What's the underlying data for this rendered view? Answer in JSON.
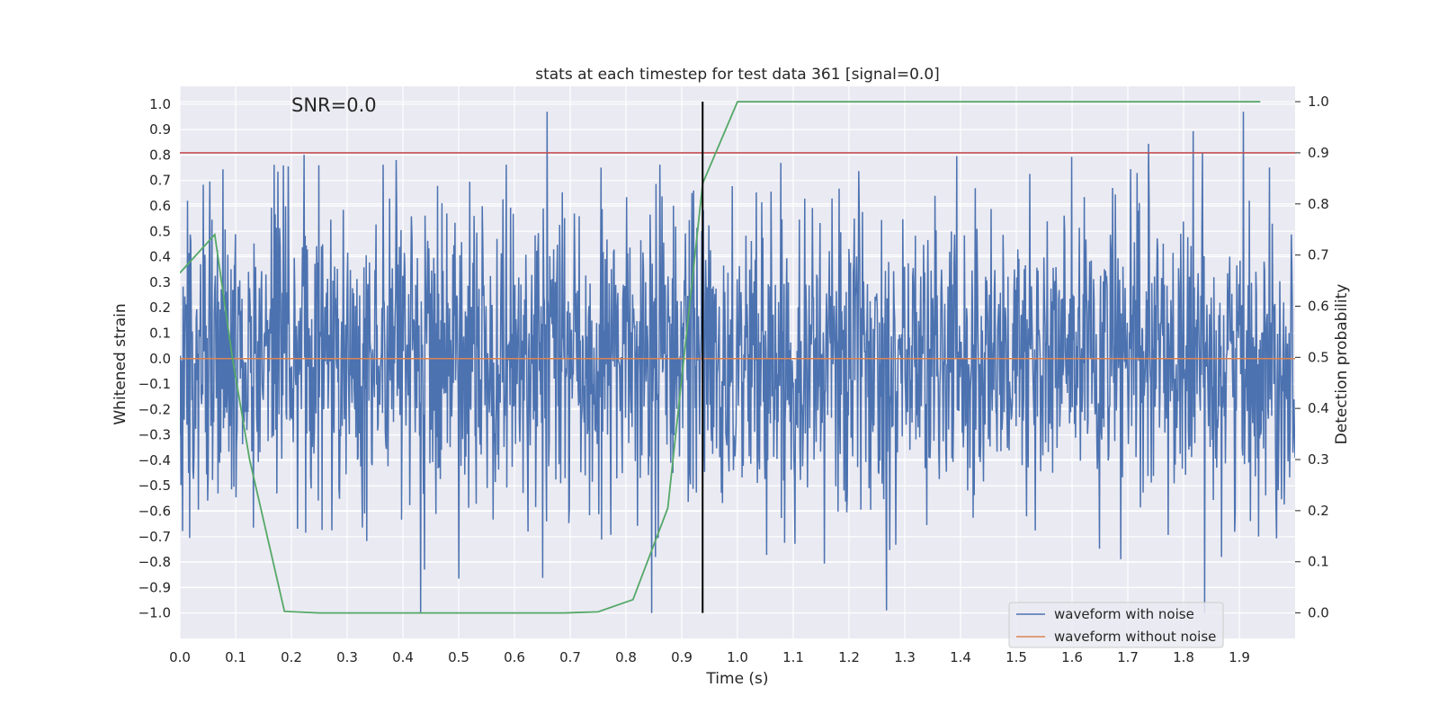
{
  "chart_data": {
    "type": "line",
    "title": "stats at each timestep for test data 361 [signal=0.0]",
    "xlabel": "Time (s)",
    "ylabel": "Whitened strain",
    "y2label": "Detection probability",
    "xlim": [
      0.0,
      2.0
    ],
    "ylim": [
      -1.1,
      1.07
    ],
    "y2lim": [
      -0.05,
      1.03
    ],
    "x_ticks": [
      0.0,
      0.1,
      0.2,
      0.3,
      0.4,
      0.5,
      0.6,
      0.7,
      0.8,
      0.9,
      1.0,
      1.1,
      1.2,
      1.3,
      1.4,
      1.5,
      1.6,
      1.7,
      1.8,
      1.9
    ],
    "x_tick_labels": [
      "0.0",
      "0.1",
      "0.2",
      "0.3",
      "0.4",
      "0.5",
      "0.6",
      "0.7",
      "0.8",
      "0.9",
      "1.0",
      "1.1",
      "1.2",
      "1.3",
      "1.4",
      "1.5",
      "1.6",
      "1.7",
      "1.8",
      "1.9"
    ],
    "y_ticks": [
      -1.0,
      -0.9,
      -0.8,
      -0.7,
      -0.6,
      -0.5,
      -0.4,
      -0.3,
      -0.2,
      -0.1,
      0.0,
      0.1,
      0.2,
      0.3,
      0.4,
      0.5,
      0.6,
      0.7,
      0.8,
      0.9,
      1.0
    ],
    "y_tick_labels": [
      "−1.0",
      "−0.9",
      "−0.8",
      "−0.7",
      "−0.6",
      "−0.5",
      "−0.4",
      "−0.3",
      "−0.2",
      "−0.1",
      "0.0",
      "0.1",
      "0.2",
      "0.3",
      "0.4",
      "0.5",
      "0.6",
      "0.7",
      "0.8",
      "0.9",
      "1.0"
    ],
    "y2_ticks": [
      0.0,
      0.1,
      0.2,
      0.3,
      0.4,
      0.5,
      0.6,
      0.7,
      0.8,
      0.9,
      1.0
    ],
    "y2_tick_labels": [
      "0.0",
      "0.1",
      "0.2",
      "0.3",
      "0.4",
      "0.5",
      "0.6",
      "0.7",
      "0.8",
      "0.9",
      "1.0"
    ],
    "grid": true,
    "legend_position": "lower-right",
    "annotation": "SNR=0.0",
    "series": [
      {
        "name": "waveform with noise",
        "color": "#4c72b0",
        "axis": "left",
        "kind": "noise",
        "x_range": [
          0.0,
          2.0
        ],
        "amplitude_spread": 0.3,
        "clip": [
          -1.0,
          0.97
        ]
      },
      {
        "name": "waveform without noise",
        "color": "#dd8452",
        "axis": "left",
        "x": [
          0.0,
          2.0
        ],
        "y": [
          0.0,
          0.0
        ]
      },
      {
        "color": "#55a868",
        "axis": "right",
        "x": [
          0.0,
          0.0625,
          0.094,
          0.125,
          0.1875,
          0.25,
          0.3125,
          0.375,
          0.4375,
          0.5,
          0.5625,
          0.625,
          0.6875,
          0.75,
          0.8125,
          0.875,
          0.9375,
          1.0,
          1.0625,
          1.125,
          1.1875,
          1.25,
          1.3125,
          1.375,
          1.4375,
          1.5,
          1.5625,
          1.625,
          1.6875,
          1.75,
          1.8125,
          1.875,
          1.9375
        ],
        "y": [
          0.665,
          0.74,
          0.5,
          0.3,
          0.003,
          0.0,
          0.0,
          0.0,
          0.0,
          0.0,
          0.0,
          0.0,
          0.0,
          0.002,
          0.026,
          0.205,
          0.84,
          1.0,
          1.0,
          1.0,
          1.0,
          1.0,
          1.0,
          1.0,
          1.0,
          1.0,
          1.0,
          1.0,
          1.0,
          1.0,
          1.0,
          1.0,
          1.0
        ]
      }
    ],
    "threshold": {
      "axis": "right",
      "value": 0.9,
      "color": "#c44e52"
    },
    "marker": {
      "x": 0.9375,
      "color": "#000000"
    }
  }
}
